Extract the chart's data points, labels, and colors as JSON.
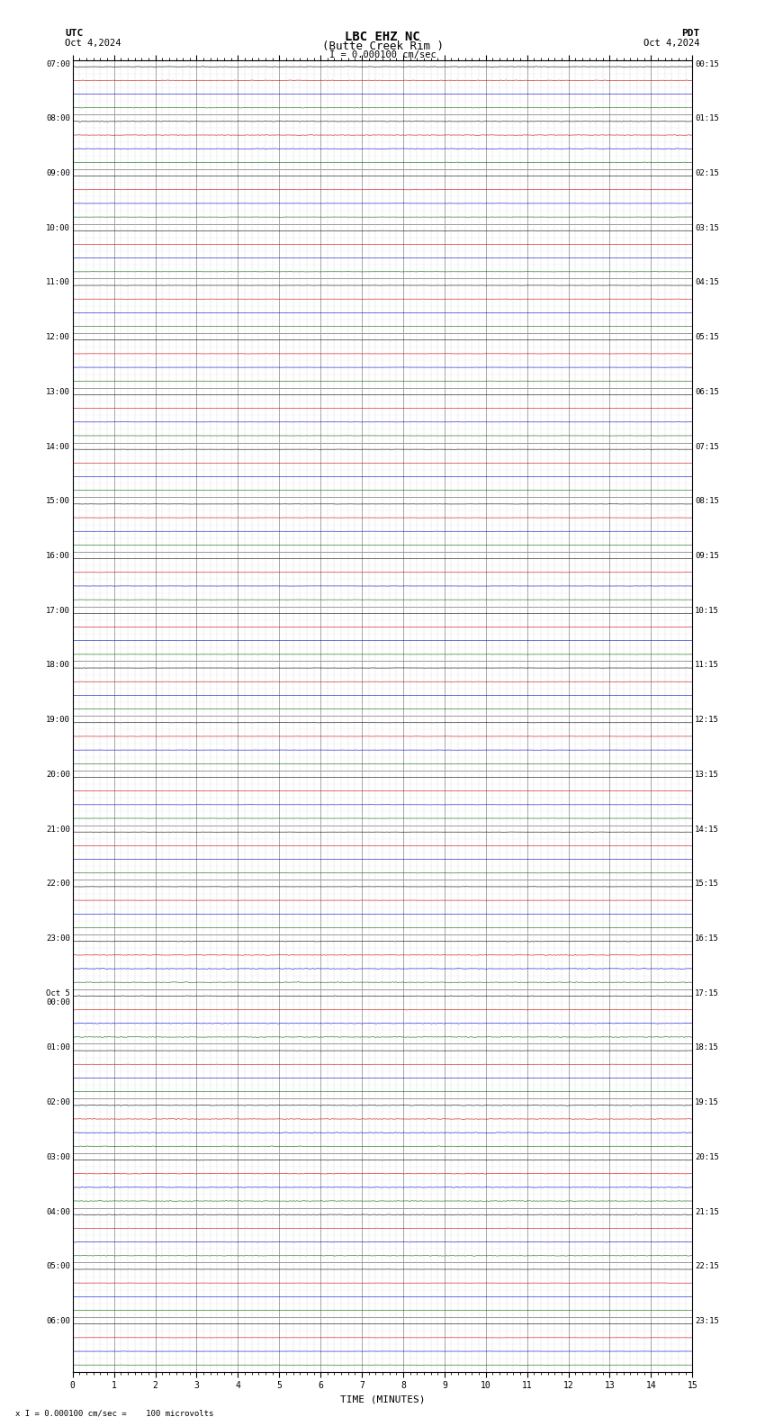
{
  "title_line1": "LBC EHZ NC",
  "title_line2": "(Butte Creek Rim )",
  "scale_label": "= 0.000100 cm/sec",
  "utc_label": "UTC",
  "pdt_label": "PDT",
  "date_left": "Oct 4,2024",
  "date_right": "Oct 4,2024",
  "xlabel": "TIME (MINUTES)",
  "footer": "x I = 0.000100 cm/sec =    100 microvolts",
  "bg_color": "#ffffff",
  "grid_color": "#aaaaaa",
  "left_times_utc": [
    "07:00",
    "08:00",
    "09:00",
    "10:00",
    "11:00",
    "12:00",
    "13:00",
    "14:00",
    "15:00",
    "16:00",
    "17:00",
    "18:00",
    "19:00",
    "20:00",
    "21:00",
    "22:00",
    "23:00",
    "Oct 5\n00:00",
    "01:00",
    "02:00",
    "03:00",
    "04:00",
    "05:00",
    "06:00"
  ],
  "right_times_pdt": [
    "00:15",
    "01:15",
    "02:15",
    "03:15",
    "04:15",
    "05:15",
    "06:15",
    "07:15",
    "08:15",
    "09:15",
    "10:15",
    "11:15",
    "12:15",
    "13:15",
    "14:15",
    "15:15",
    "16:15",
    "17:15",
    "18:15",
    "19:15",
    "20:15",
    "21:15",
    "22:15",
    "23:15"
  ],
  "n_rows": 24,
  "traces_per_row": 4,
  "trace_colors": [
    "#000000",
    "#cc0000",
    "#0000cc",
    "#006600"
  ],
  "x_min": 0,
  "x_max": 15,
  "x_ticks": [
    0,
    1,
    2,
    3,
    4,
    5,
    6,
    7,
    8,
    9,
    10,
    11,
    12,
    13,
    14,
    15
  ],
  "seed": 42
}
